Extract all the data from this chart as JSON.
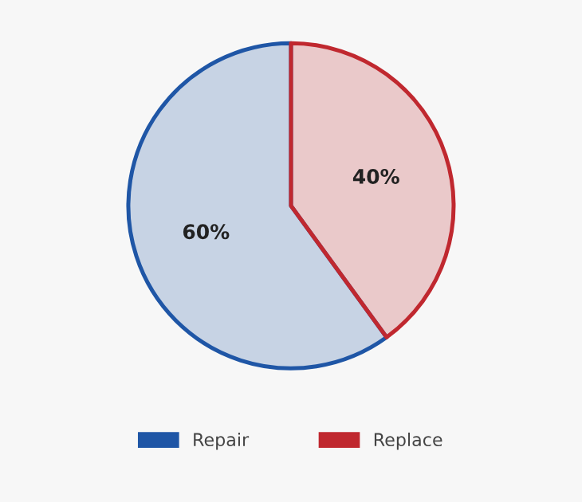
{
  "chart_data": {
    "type": "pie",
    "categories": [
      "Repair",
      "Replace"
    ],
    "values": [
      60,
      40
    ],
    "colors": [
      "#1f56a6",
      "#c0282f"
    ],
    "value_labels": [
      "60%",
      "40%"
    ],
    "legend": "bottom"
  }
}
